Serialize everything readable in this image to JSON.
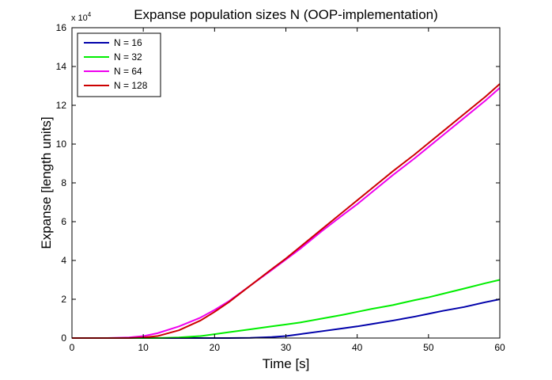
{
  "chart_data": {
    "type": "line",
    "title": "Expanse population sizes N (OOP-implementation)",
    "xlabel": "Time [s]",
    "ylabel": "Expanse [length units]",
    "y_multiplier_text": "x 10",
    "y_multiplier_exponent": "4",
    "xlim": [
      0,
      60
    ],
    "ylim": [
      0,
      160000
    ],
    "x_ticks": [
      0,
      10,
      20,
      30,
      40,
      50,
      60
    ],
    "y_ticks": [
      0,
      20000,
      40000,
      60000,
      80000,
      100000,
      120000,
      140000,
      160000
    ],
    "y_tick_labels": [
      "0",
      "2",
      "4",
      "6",
      "8",
      "10",
      "12",
      "14",
      "16"
    ],
    "x_tick_labels": [
      "0",
      "10",
      "20",
      "30",
      "40",
      "50",
      "60"
    ],
    "grid": false,
    "legend_position": "top-left",
    "x": [
      0,
      5,
      8,
      10,
      12,
      15,
      18,
      20,
      22,
      25,
      28,
      30,
      32,
      35,
      38,
      40,
      42,
      45,
      48,
      50,
      52,
      55,
      58,
      60
    ],
    "series": [
      {
        "name": "N = 16",
        "color": "#0000aa",
        "values": [
          0,
          0,
          0,
          0,
          0,
          0,
          0,
          0,
          0,
          100,
          500,
          1000,
          2000,
          3500,
          5000,
          6000,
          7200,
          9000,
          11000,
          12500,
          14000,
          16000,
          18500,
          20000
        ]
      },
      {
        "name": "N = 32",
        "color": "#00ee00",
        "values": [
          0,
          0,
          0,
          0,
          0,
          300,
          1000,
          2000,
          3000,
          4500,
          6000,
          7000,
          8000,
          10000,
          12000,
          13500,
          15000,
          17000,
          19500,
          21000,
          22800,
          25500,
          28300,
          30000
        ]
      },
      {
        "name": "N = 64",
        "color": "#ee00ee",
        "values": [
          0,
          0,
          300,
          1000,
          2500,
          6000,
          10500,
          14500,
          19000,
          27000,
          35000,
          40500,
          46000,
          55000,
          63500,
          69000,
          75000,
          84000,
          92500,
          98500,
          104500,
          113500,
          122500,
          129000
        ]
      },
      {
        "name": "N = 128",
        "color": "#cc0000",
        "values": [
          0,
          0,
          0,
          300,
          1000,
          4000,
          9000,
          13500,
          18500,
          27000,
          35500,
          41000,
          47000,
          56000,
          65000,
          71000,
          77000,
          86000,
          94500,
          100500,
          106500,
          115500,
          124500,
          131000
        ]
      }
    ]
  }
}
